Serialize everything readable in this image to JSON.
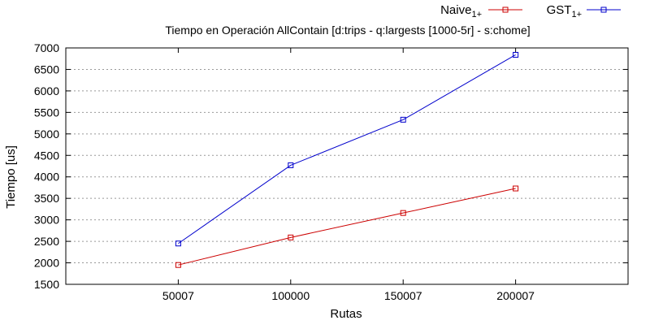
{
  "chart_data": {
    "type": "line",
    "title": "Tiempo en Operación AllContain [d:trips - q:largests [1000-5r] - s:chome]",
    "xlabel": "Rutas",
    "ylabel": "Tiempo [us]",
    "x": [
      50007,
      100000,
      150007,
      200007
    ],
    "x_tick_labels": [
      "50007",
      "100000",
      "150007",
      "200007"
    ],
    "xlim": [
      7,
      250007
    ],
    "ylim": [
      1500,
      7000
    ],
    "y_ticks": [
      1500,
      2000,
      2500,
      3000,
      3500,
      4000,
      4500,
      5000,
      5500,
      6000,
      6500,
      7000
    ],
    "grid": true,
    "legend_position": "top-right",
    "series": [
      {
        "name": "Naive",
        "name_sub": "1+",
        "color": "#cc0000",
        "marker": "square",
        "values": [
          1950,
          2590,
          3160,
          3730
        ]
      },
      {
        "name": "GST",
        "name_sub": "1+",
        "color": "#0000cc",
        "marker": "square",
        "values": [
          2450,
          4270,
          5330,
          6840
        ]
      }
    ]
  }
}
